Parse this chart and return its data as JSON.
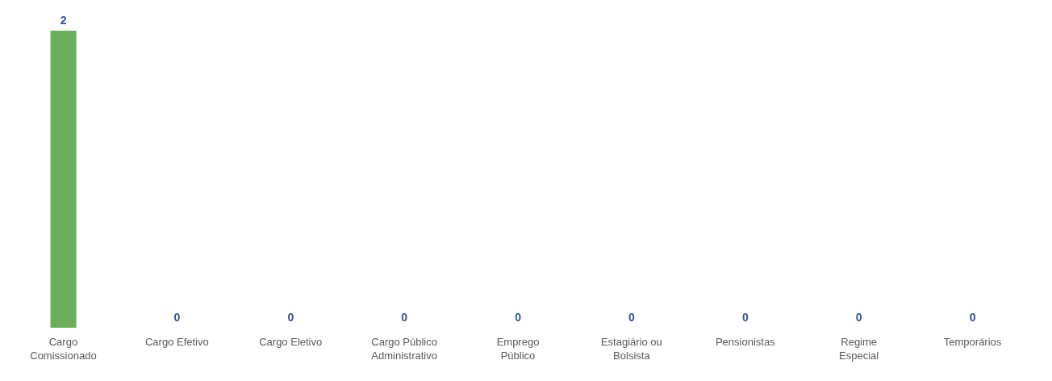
{
  "chart_data": {
    "type": "bar",
    "categories": [
      "Cargo Comissionado",
      "Cargo Efetivo",
      "Cargo Eletivo",
      "Cargo Público Administrativo",
      "Emprego Público",
      "Estagiário ou Bolsista",
      "Pensionistas",
      "Regime Especial",
      "Temporários"
    ],
    "values": [
      2,
      0,
      0,
      0,
      0,
      0,
      0,
      0,
      0
    ],
    "color": "#6aaf5a",
    "data_labels": true,
    "grid": false,
    "legend": false
  }
}
